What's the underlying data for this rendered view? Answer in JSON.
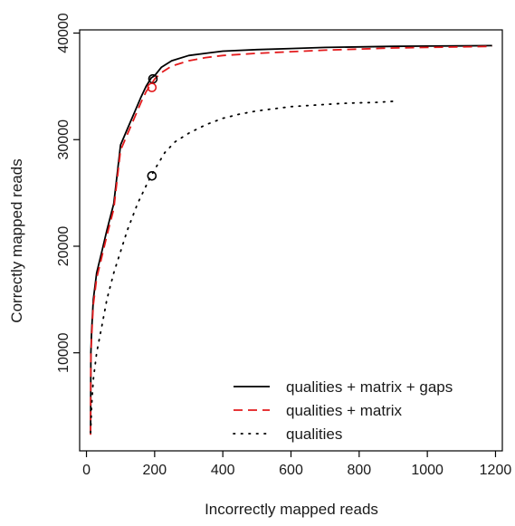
{
  "chart_data": {
    "type": "line",
    "title": "",
    "xlabel": "Incorrectly mapped reads",
    "ylabel": "Correctly mapped reads",
    "xlim": [
      -20,
      1220
    ],
    "ylim": [
      800,
      40300
    ],
    "x_ticks": [
      0,
      200,
      400,
      600,
      800,
      1000,
      1200
    ],
    "x_tick_labels": [
      "0",
      "200",
      "400",
      "600",
      "800",
      "1000",
      "1200"
    ],
    "y_ticks": [
      10000,
      20000,
      30000,
      40000
    ],
    "y_tick_labels": [
      "10000",
      "20000",
      "30000",
      "40000"
    ],
    "grid": false,
    "legend_position": "bottom-right",
    "series": [
      {
        "name": "qualities + matrix + gaps",
        "color": "#000000",
        "style": "solid",
        "x": [
          12,
          13,
          15,
          20,
          30,
          45,
          60,
          80,
          100,
          120,
          140,
          160,
          175,
          190,
          200,
          220,
          250,
          300,
          350,
          400,
          500,
          600,
          700,
          800,
          900,
          1000,
          1100,
          1190
        ],
        "y": [
          2500,
          10000,
          12000,
          15000,
          17500,
          19500,
          21500,
          24000,
          29500,
          31000,
          32500,
          34000,
          35000,
          35800,
          36000,
          36800,
          37400,
          37900,
          38100,
          38300,
          38450,
          38550,
          38650,
          38700,
          38750,
          38780,
          38800,
          38820
        ]
      },
      {
        "name": "qualities + matrix",
        "color": "#e31a1c",
        "style": "dashed",
        "x": [
          12,
          13,
          15,
          20,
          30,
          45,
          60,
          80,
          100,
          120,
          140,
          160,
          175,
          190,
          200,
          220,
          250,
          300,
          350,
          400,
          500,
          600,
          700,
          800,
          900,
          1000,
          1100,
          1190
        ],
        "y": [
          2300,
          9500,
          11500,
          14500,
          17000,
          19000,
          21000,
          23500,
          29000,
          30500,
          32000,
          33500,
          34500,
          35200,
          35700,
          36300,
          36900,
          37400,
          37700,
          37900,
          38100,
          38250,
          38400,
          38500,
          38600,
          38650,
          38700,
          38750
        ]
      },
      {
        "name": "qualities",
        "color": "#000000",
        "style": "dotted",
        "x": [
          12,
          15,
          20,
          30,
          45,
          60,
          80,
          100,
          120,
          150,
          180,
          200,
          230,
          260,
          300,
          350,
          400,
          450,
          500,
          550,
          600,
          650,
          700,
          750,
          800,
          850,
          900
        ],
        "y": [
          2500,
          5000,
          7500,
          10000,
          12500,
          15000,
          17500,
          19500,
          21500,
          24000,
          26000,
          27200,
          28800,
          29800,
          30600,
          31400,
          32000,
          32400,
          32700,
          32900,
          33100,
          33200,
          33300,
          33400,
          33450,
          33500,
          33600
        ]
      }
    ],
    "markers": [
      {
        "series": "qualities + matrix + gaps",
        "x": 195,
        "y": 35700,
        "color": "#000000"
      },
      {
        "series": "qualities + matrix",
        "x": 192,
        "y": 34900,
        "color": "#e31a1c"
      },
      {
        "series": "qualities",
        "x": 192,
        "y": 26600,
        "color": "#000000"
      }
    ]
  }
}
